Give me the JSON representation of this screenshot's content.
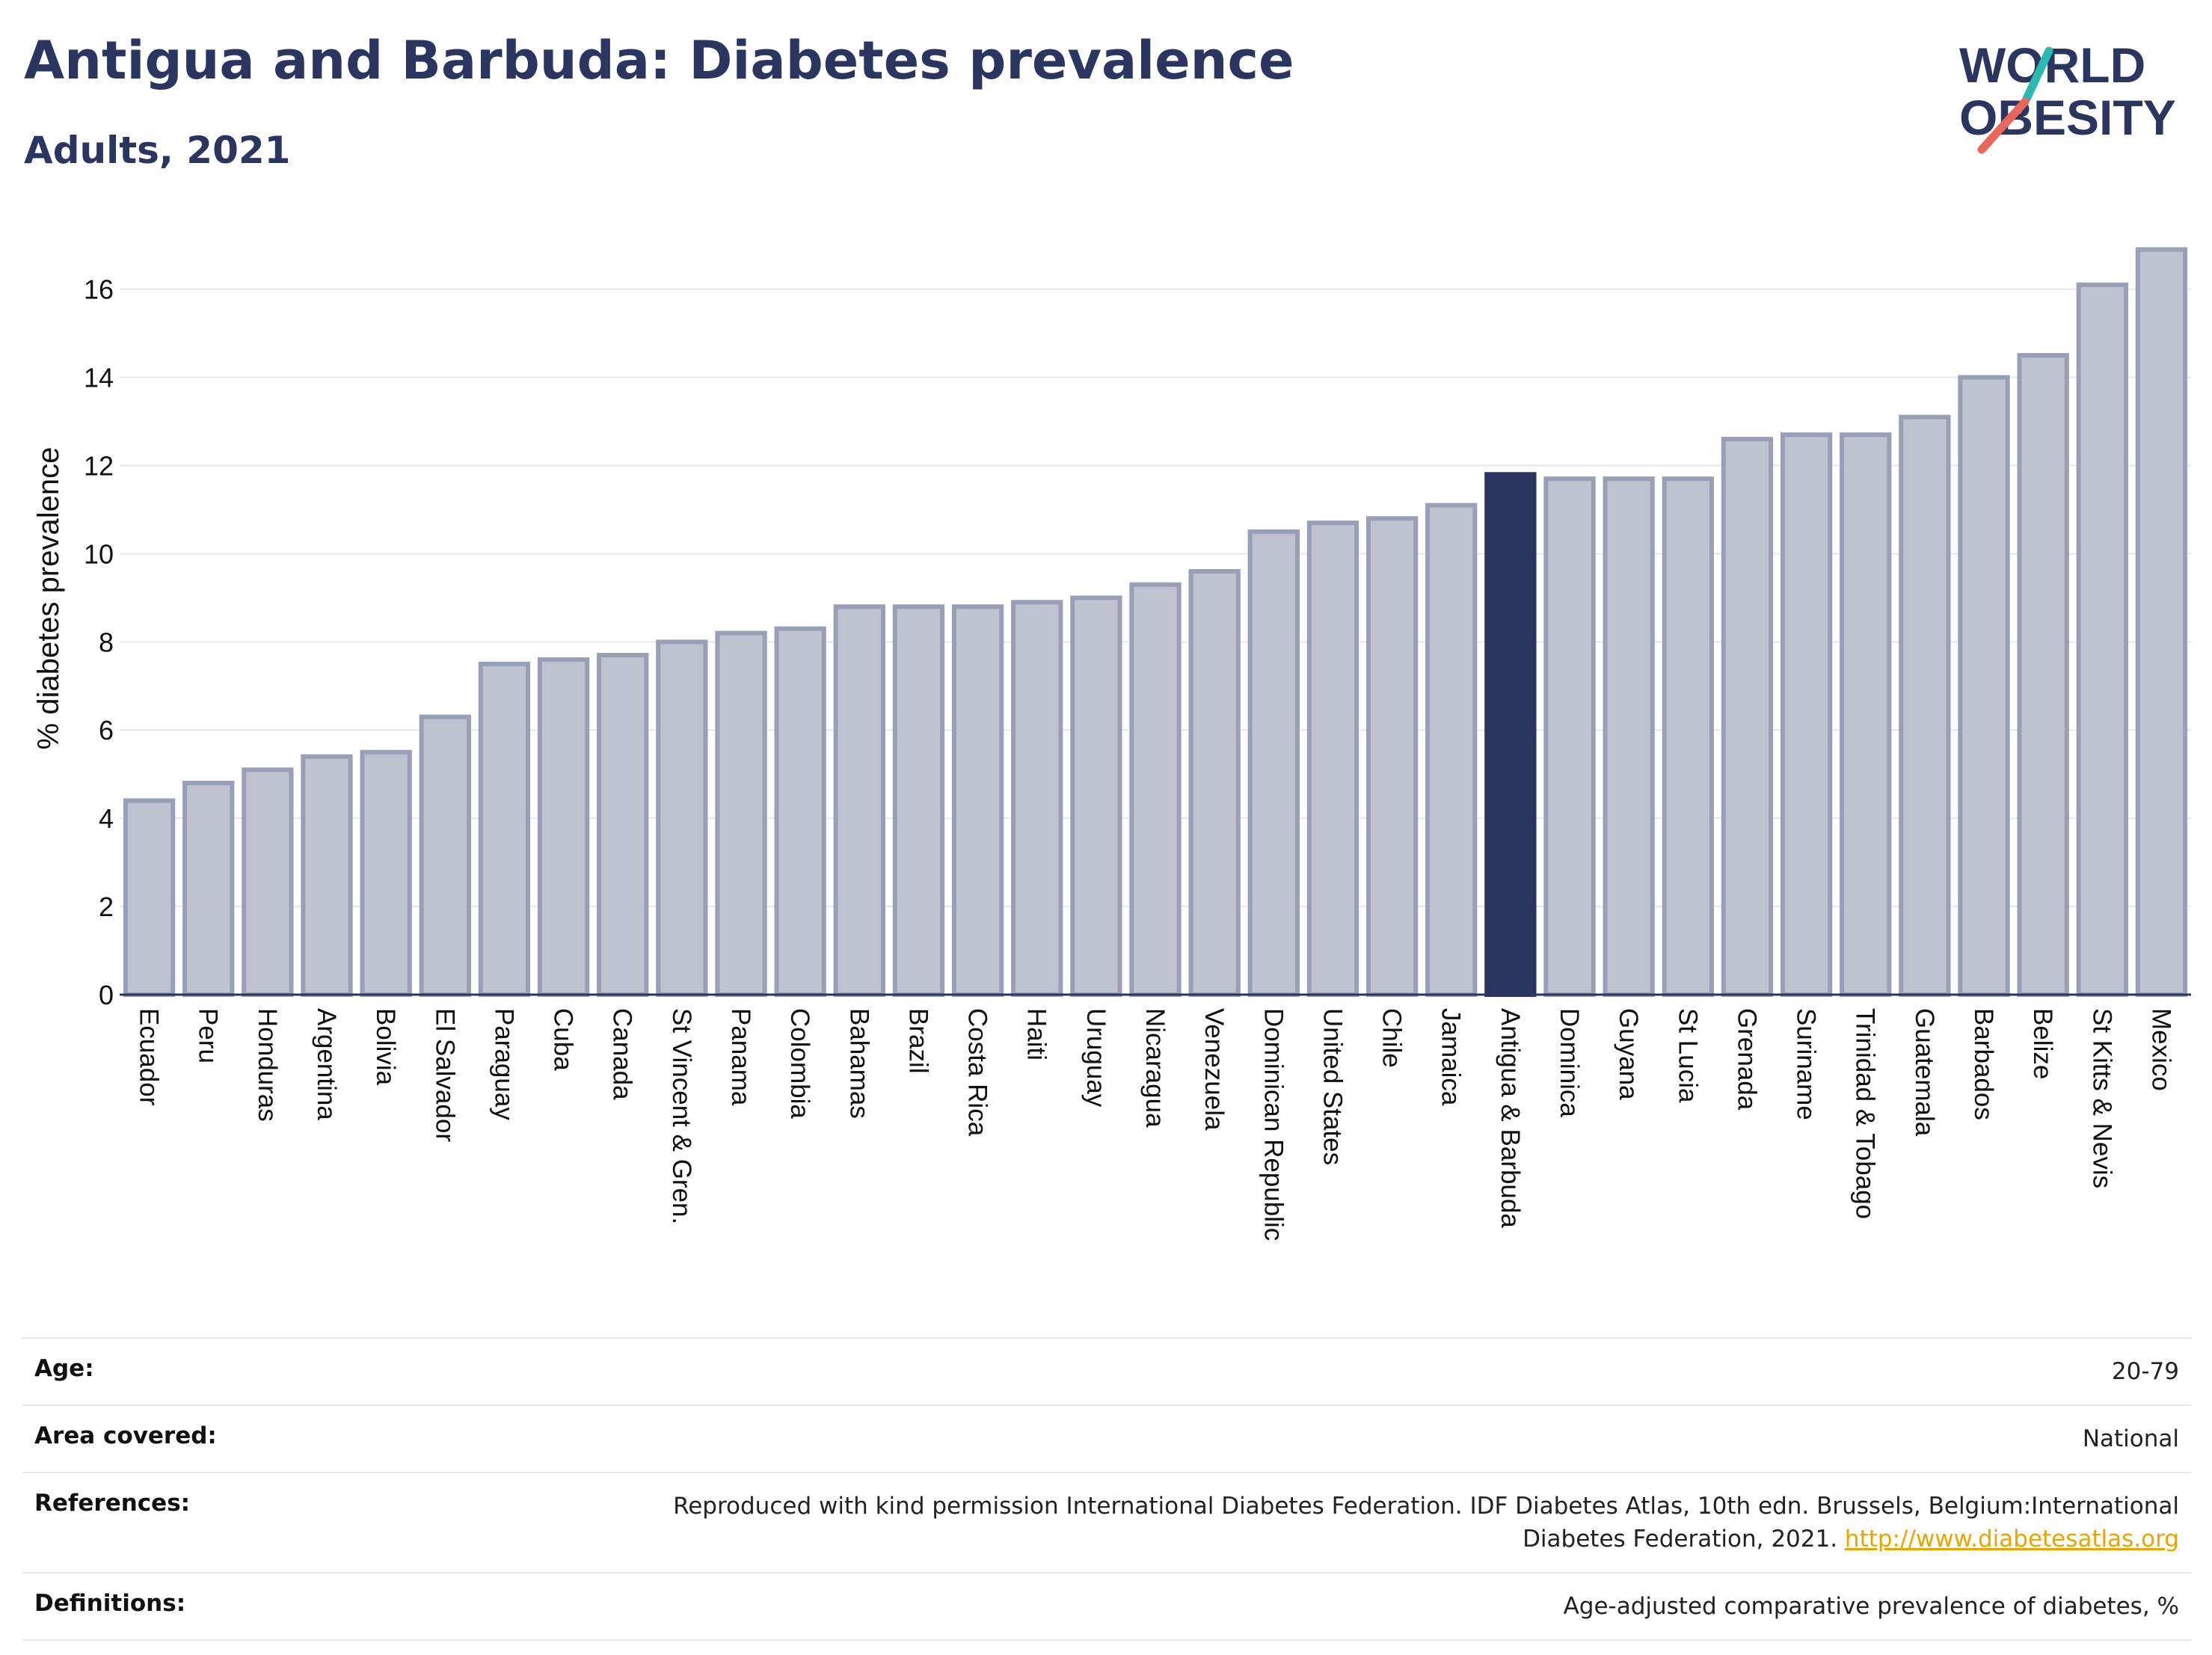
{
  "header": {
    "title": "Antigua and Barbuda: Diabetes prevalence",
    "subtitle": "Adults, 2021",
    "logo_line1": "WORLD",
    "logo_line2": "OBESITY"
  },
  "colors": {
    "title": "#2a3560",
    "bar_default_fill": "#bfc2cf",
    "bar_default_stroke": "#9a9fb8",
    "bar_highlight": "#2a3560",
    "logo_teal": "#2bb8b0",
    "logo_red": "#e8675a",
    "link": "#e9a500"
  },
  "chart_data": {
    "type": "bar",
    "title": "Antigua and Barbuda: Diabetes prevalence",
    "subtitle": "Adults, 2021",
    "xlabel": "",
    "ylabel": "% diabetes prevalence",
    "ylim": [
      0,
      17.3
    ],
    "yticks": [
      0,
      2,
      4,
      6,
      8,
      10,
      12,
      14,
      16
    ],
    "grid": true,
    "highlight": "Antigua & Barbuda",
    "categories": [
      "Ecuador",
      "Peru",
      "Honduras",
      "Argentina",
      "Bolivia",
      "El Salvador",
      "Paraguay",
      "Cuba",
      "Canada",
      "St Vincent & Gren.",
      "Panama",
      "Colombia",
      "Bahamas",
      "Brazil",
      "Costa Rica",
      "Haiti",
      "Uruguay",
      "Nicaragua",
      "Venezuela",
      "Dominican Republic",
      "United States",
      "Chile",
      "Jamaica",
      "Antigua & Barbuda",
      "Dominica",
      "Guyana",
      "St Lucia",
      "Grenada",
      "Suriname",
      "Trinidad & Tobago",
      "Guatemala",
      "Barbados",
      "Belize",
      "St Kitts & Nevis",
      "Mexico"
    ],
    "values": [
      4.4,
      4.8,
      5.1,
      5.4,
      5.5,
      6.3,
      7.5,
      7.6,
      7.7,
      8.0,
      8.2,
      8.3,
      8.8,
      8.8,
      8.8,
      8.9,
      9.0,
      9.3,
      9.6,
      10.5,
      10.7,
      10.8,
      11.1,
      11.8,
      11.7,
      11.7,
      11.7,
      12.6,
      12.7,
      12.7,
      13.1,
      14.0,
      14.5,
      16.1,
      16.9
    ]
  },
  "meta": {
    "age_label": "Age:",
    "age_value": "20-79",
    "area_label": "Area covered:",
    "area_value": "National",
    "references_label": "References:",
    "references_value": "Reproduced with kind permission International Diabetes Federation.  IDF Diabetes Atlas, 10th edn. Brussels, Belgium:International Diabetes Federation, 2021.",
    "references_link": "http://www.diabetesatlas.org",
    "definitions_label": "Definitions:",
    "definitions_value": "Age-adjusted comparative prevalence of diabetes, %"
  }
}
